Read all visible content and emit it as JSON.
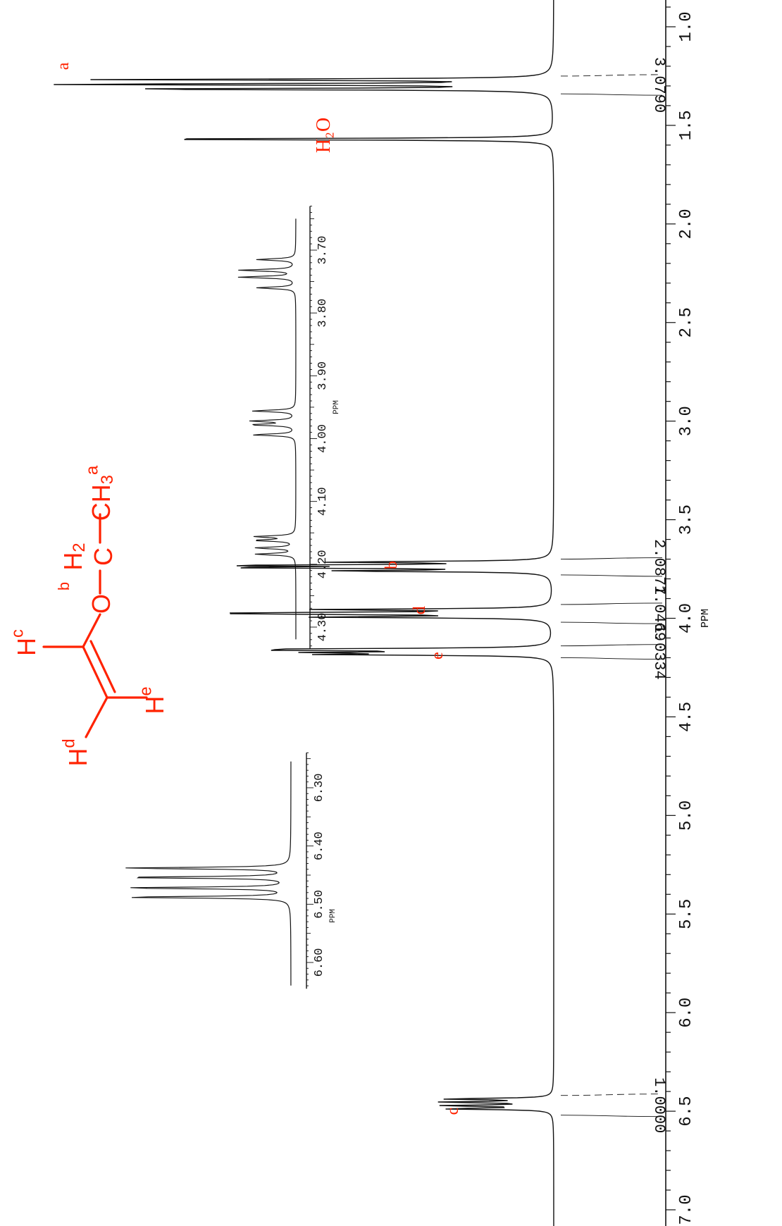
{
  "chart_data": [
    {
      "type": "line",
      "id": "main_spectrum",
      "xlabel": "PPM",
      "xlim": [
        0.7,
        7.1
      ],
      "x_direction": "reversed",
      "ticks": [
        {
          "value": 1.0,
          "label": "1.0"
        },
        {
          "value": 1.5,
          "label": "1.5"
        },
        {
          "value": 2.0,
          "label": "2.0"
        },
        {
          "value": 2.5,
          "label": "2.5"
        },
        {
          "value": 3.0,
          "label": "3.0"
        },
        {
          "value": 3.5,
          "label": "3.5"
        },
        {
          "value": 4.0,
          "label": "4.0"
        },
        {
          "value": 4.5,
          "label": "4.5"
        },
        {
          "value": 5.0,
          "label": "5.0"
        },
        {
          "value": 5.5,
          "label": "5.5"
        },
        {
          "value": 6.0,
          "label": "6.0"
        },
        {
          "value": 6.5,
          "label": "6.5"
        },
        {
          "value": 7.0,
          "label": "7.0"
        }
      ],
      "peaks": [
        {
          "ppm": 1.268,
          "height": 0.88
        },
        {
          "ppm": 1.292,
          "height": 1.0
        },
        {
          "ppm": 1.316,
          "height": 0.88
        },
        {
          "ppm": 1.57,
          "height": 0.87
        },
        {
          "ppm": 3.715,
          "height": 0.42
        },
        {
          "ppm": 3.732,
          "height": 0.6
        },
        {
          "ppm": 3.743,
          "height": 0.6
        },
        {
          "ppm": 3.76,
          "height": 0.42
        },
        {
          "ppm": 3.956,
          "height": 0.45
        },
        {
          "ppm": 3.972,
          "height": 0.45
        },
        {
          "ppm": 3.978,
          "height": 0.45
        },
        {
          "ppm": 3.994,
          "height": 0.45
        },
        {
          "ppm": 4.156,
          "height": 0.4
        },
        {
          "ppm": 4.162,
          "height": 0.4
        },
        {
          "ppm": 4.174,
          "height": 0.4
        },
        {
          "ppm": 4.184,
          "height": 0.4
        },
        {
          "ppm": 6.438,
          "height": 0.21
        },
        {
          "ppm": 6.454,
          "height": 0.21
        },
        {
          "ppm": 6.472,
          "height": 0.21
        },
        {
          "ppm": 6.488,
          "height": 0.21
        }
      ],
      "integrals": [
        {
          "label": "3.0790",
          "from": 1.25,
          "to": 1.34
        },
        {
          "label": "2.0877",
          "from": 3.7,
          "to": 3.78
        },
        {
          "label": "1.0469",
          "from": 3.93,
          "to": 4.02
        },
        {
          "label": "1.0334",
          "from": 4.14,
          "to": 4.2
        },
        {
          "label": "1.0000",
          "from": 6.42,
          "to": 6.52
        }
      ],
      "annotations": [
        {
          "text": "a",
          "ppm": 1.2,
          "side": "high"
        },
        {
          "text": "H₂O",
          "ppm": 1.55,
          "side": "mid"
        },
        {
          "text": "b",
          "ppm": 3.72,
          "side": "mid"
        },
        {
          "text": "d",
          "ppm": 3.96,
          "side": "mid"
        },
        {
          "text": "e",
          "ppm": 4.18,
          "side": "mid2"
        },
        {
          "text": "c",
          "ppm": 6.5,
          "side": "low"
        }
      ]
    },
    {
      "type": "line",
      "id": "inset_3_7_to_4_3",
      "xlabel": "PPM",
      "xlim": [
        3.63,
        4.33
      ],
      "x_direction": "reversed",
      "ticks": [
        {
          "value": 3.7,
          "label": "3.70"
        },
        {
          "value": 3.8,
          "label": "3.80"
        },
        {
          "value": 3.9,
          "label": "3.90"
        },
        {
          "value": 4.0,
          "label": "4.00"
        },
        {
          "value": 4.1,
          "label": "4.10"
        },
        {
          "value": 4.2,
          "label": "4.20"
        },
        {
          "value": 4.3,
          "label": "4.30"
        }
      ],
      "peaks": [
        {
          "ppm": 3.715,
          "height": 0.69
        },
        {
          "ppm": 3.732,
          "height": 1.0
        },
        {
          "ppm": 3.743,
          "height": 1.0
        },
        {
          "ppm": 3.76,
          "height": 0.69
        },
        {
          "ppm": 3.956,
          "height": 0.77
        },
        {
          "ppm": 3.972,
          "height": 0.77
        },
        {
          "ppm": 3.978,
          "height": 0.77
        },
        {
          "ppm": 3.994,
          "height": 0.77
        },
        {
          "ppm": 4.156,
          "height": 0.71
        },
        {
          "ppm": 4.162,
          "height": 0.71
        },
        {
          "ppm": 4.174,
          "height": 0.71
        },
        {
          "ppm": 4.184,
          "height": 0.71
        }
      ]
    },
    {
      "type": "line",
      "id": "inset_6_2_to_6_6",
      "xlabel": "PPM",
      "xlim": [
        6.24,
        6.65
      ],
      "x_direction": "reversed",
      "ticks": [
        {
          "value": 6.3,
          "label": "6.30"
        },
        {
          "value": 6.4,
          "label": "6.40"
        },
        {
          "value": 6.5,
          "label": "6.50"
        },
        {
          "value": 6.6,
          "label": "6.60"
        }
      ],
      "peaks": [
        {
          "ppm": 6.438,
          "height": 1.0
        },
        {
          "ppm": 6.454,
          "height": 1.0
        },
        {
          "ppm": 6.472,
          "height": 1.0
        },
        {
          "ppm": 6.488,
          "height": 1.0
        }
      ]
    }
  ],
  "structure": {
    "atoms": [
      {
        "id": "Hc",
        "text": "H",
        "sup": "c"
      },
      {
        "id": "Hd",
        "text": "H",
        "sup": "d"
      },
      {
        "id": "He",
        "text": "H",
        "sup": "e"
      },
      {
        "id": "O",
        "text": "O"
      },
      {
        "id": "C_b",
        "text": "C"
      },
      {
        "id": "H2",
        "text": "H",
        "sub": "2"
      },
      {
        "id": "b_label",
        "text": "b"
      },
      {
        "id": "CH3",
        "text": "CH",
        "sub": "3",
        "sup": "a"
      }
    ]
  },
  "colors": {
    "annotation": "#ff2200",
    "spectrum": "#111111",
    "background": "#ffffff"
  }
}
